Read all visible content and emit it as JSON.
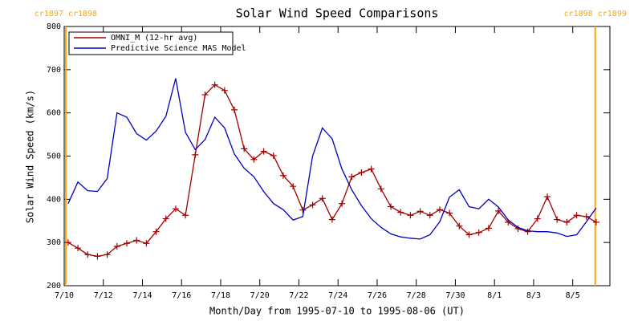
{
  "chart_data": {
    "type": "line",
    "title": "Solar Wind Speed Comparisons",
    "xlabel": "Month/Day from 1995-07-10 to 1995-08-06 (UT)",
    "ylabel": "Solar Wind Speed (km/s)",
    "xlim": [
      0,
      27.9
    ],
    "ylim": [
      200,
      800
    ],
    "yticks": [
      200,
      300,
      400,
      500,
      600,
      700,
      800
    ],
    "xticks": [
      {
        "value": 0,
        "label": "7/10"
      },
      {
        "value": 2,
        "label": "7/12"
      },
      {
        "value": 4,
        "label": "7/14"
      },
      {
        "value": 6,
        "label": "7/16"
      },
      {
        "value": 8,
        "label": "7/18"
      },
      {
        "value": 10,
        "label": "7/20"
      },
      {
        "value": 12,
        "label": "7/22"
      },
      {
        "value": 14,
        "label": "7/24"
      },
      {
        "value": 16,
        "label": "7/26"
      },
      {
        "value": 18,
        "label": "7/28"
      },
      {
        "value": 20,
        "label": "7/30"
      },
      {
        "value": 22,
        "label": "8/1"
      },
      {
        "value": 24,
        "label": "8/3"
      },
      {
        "value": 26,
        "label": "8/5"
      }
    ],
    "legend": "upper left",
    "boundaries": {
      "color": "#ffa500",
      "items": [
        {
          "x": 0.08,
          "label": "cr1897 cr1898"
        },
        {
          "x": 27.15,
          "label": "cr1898 cr1899"
        }
      ]
    },
    "series": [
      {
        "name": "OMNI_M (12-hr avg)",
        "color": "#a00000",
        "marker": "+",
        "x": [
          0.2,
          0.7,
          1.2,
          1.7,
          2.2,
          2.7,
          3.2,
          3.7,
          4.2,
          4.7,
          5.2,
          5.7,
          6.2,
          6.7,
          7.2,
          7.7,
          8.2,
          8.7,
          9.2,
          9.7,
          10.2,
          10.7,
          11.2,
          11.7,
          12.2,
          12.7,
          13.2,
          13.7,
          14.2,
          14.7,
          15.2,
          15.7,
          16.2,
          16.7,
          17.2,
          17.7,
          18.2,
          18.7,
          19.2,
          19.7,
          20.2,
          20.7,
          21.2,
          21.7,
          22.2,
          22.7,
          23.2,
          23.7,
          24.2,
          24.7,
          25.2,
          25.7,
          26.2,
          26.7,
          27.2
        ],
        "values": [
          300,
          287,
          272,
          268,
          272,
          291,
          298,
          305,
          298,
          325,
          355,
          378,
          363,
          503,
          642,
          665,
          652,
          607,
          517,
          492,
          511,
          501,
          455,
          430,
          375,
          387,
          402,
          353,
          390,
          452,
          462,
          470,
          424,
          383,
          370,
          363,
          372,
          363,
          376,
          368,
          338,
          318,
          323,
          333,
          373,
          347,
          332,
          325,
          355,
          406,
          353,
          347,
          363,
          360,
          347
        ]
      },
      {
        "name": "Predictive Science MAS Model",
        "color": "#0000c0",
        "x": [
          0.2,
          0.7,
          1.2,
          1.7,
          2.2,
          2.7,
          3.2,
          3.7,
          4.2,
          4.7,
          5.2,
          5.7,
          6.2,
          6.7,
          7.2,
          7.7,
          8.2,
          8.7,
          9.2,
          9.7,
          10.2,
          10.7,
          11.2,
          11.7,
          12.2,
          12.7,
          13.2,
          13.7,
          14.2,
          14.7,
          15.2,
          15.7,
          16.2,
          16.7,
          17.2,
          17.7,
          18.2,
          18.7,
          19.2,
          19.7,
          20.2,
          20.7,
          21.2,
          21.7,
          22.2,
          22.7,
          23.2,
          23.7,
          24.2,
          24.7,
          25.2,
          25.7,
          26.2,
          26.7,
          27.2
        ],
        "values": [
          390,
          440,
          420,
          418,
          448,
          600,
          590,
          552,
          537,
          558,
          592,
          680,
          555,
          515,
          538,
          590,
          565,
          505,
          472,
          452,
          418,
          390,
          376,
          352,
          360,
          500,
          565,
          540,
          470,
          422,
          385,
          355,
          335,
          320,
          313,
          310,
          308,
          318,
          348,
          405,
          422,
          383,
          378,
          400,
          382,
          352,
          335,
          327,
          325,
          325,
          322,
          314,
          318,
          348,
          380
        ]
      }
    ]
  }
}
